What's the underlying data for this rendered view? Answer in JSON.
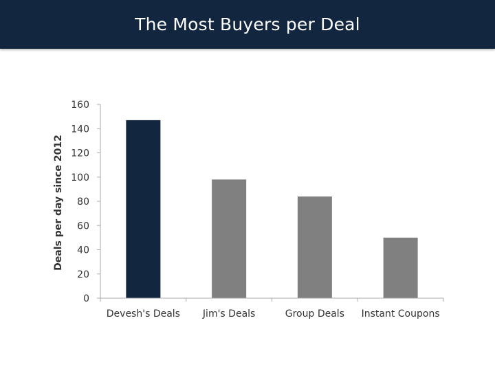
{
  "slide": {
    "title": "The Most Buyers per Deal",
    "title_bar_color": "#12263f"
  },
  "chart_data": {
    "type": "bar",
    "title": "",
    "xlabel": "",
    "ylabel": "Deals per day since 2012",
    "categories": [
      "Devesh's Deals",
      "Jim's Deals",
      "Group Deals",
      "Instant Coupons"
    ],
    "values": [
      147,
      98,
      84,
      50
    ],
    "bar_colors": [
      "#12263f",
      "#808080",
      "#808080",
      "#808080"
    ],
    "ylim": [
      0,
      160
    ],
    "yticks": [
      0,
      20,
      40,
      60,
      80,
      100,
      120,
      140,
      160
    ],
    "grid": false,
    "legend": "none"
  }
}
